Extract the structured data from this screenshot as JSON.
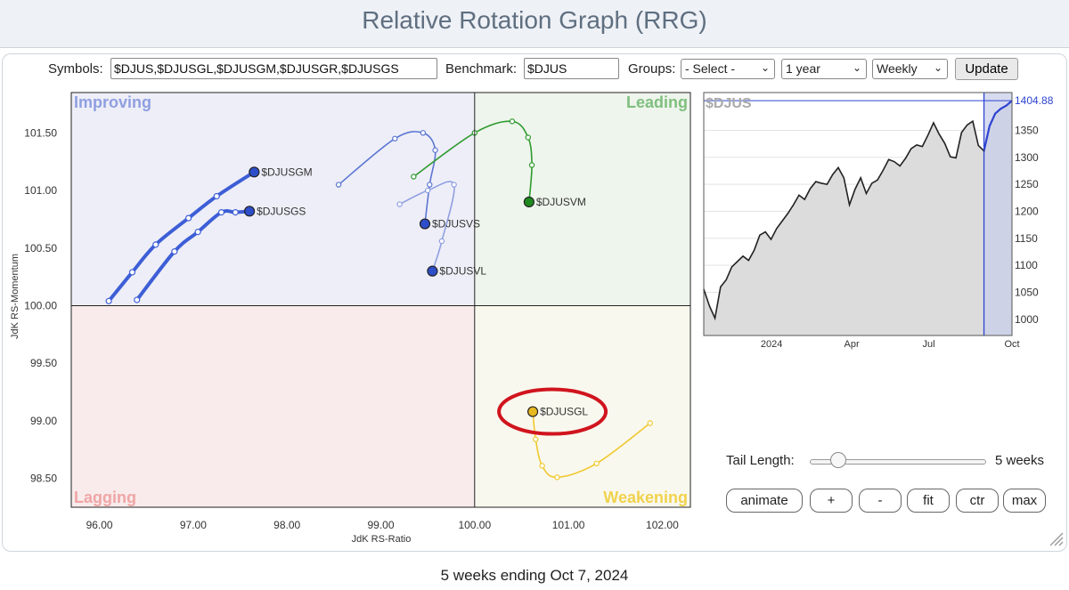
{
  "page": {
    "title": "Relative Rotation Graph (RRG)",
    "footer": "5 weeks ending Oct 7, 2024"
  },
  "controls": {
    "symbols_label": "Symbols:",
    "symbols_value": "$DJUS,$DJUSGL,$DJUSGM,$DJUSGR,$DJUSGS",
    "benchmark_label": "Benchmark:",
    "benchmark_value": "$DJUS",
    "groups_label": "Groups:",
    "groups_selected": "- Select -",
    "period_selected": "1 year",
    "frequency_selected": "Weekly",
    "update_label": "Update"
  },
  "tail": {
    "label": "Tail Length:",
    "value_text": "5 weeks",
    "weeks": 5
  },
  "buttons": {
    "animate": "animate",
    "plus": "+",
    "minus": "-",
    "fit": "fit",
    "ctr": "ctr",
    "max": "max"
  },
  "chart_data": [
    {
      "type": "scatter",
      "title": "",
      "xlabel": "JdK RS-Ratio",
      "ylabel": "JdK RS-Momentum",
      "xlim": [
        95.7,
        102.3
      ],
      "ylim": [
        98.25,
        101.85
      ],
      "x_ticks": [
        "96.00",
        "97.00",
        "98.00",
        "99.00",
        "100.00",
        "101.00",
        "102.00"
      ],
      "y_ticks": [
        "98.50",
        "99.00",
        "99.50",
        "100.00",
        "100.50",
        "101.00",
        "101.50"
      ],
      "center": [
        100,
        100
      ],
      "quadrants": [
        {
          "name": "Improving",
          "position": "top-left",
          "bg": "#eeeef8",
          "label_color": "#8f9fe0"
        },
        {
          "name": "Leading",
          "position": "top-right",
          "bg": "#eef5ec",
          "label_color": "#7fbf7f"
        },
        {
          "name": "Lagging",
          "position": "bottom-left",
          "bg": "#f9ebeb",
          "label_color": "#efa5a5"
        },
        {
          "name": "Weakening",
          "position": "bottom-right",
          "bg": "#f9f8ee",
          "label_color": "#f0d24d"
        }
      ],
      "series": [
        {
          "name": "$DJUSGM",
          "color": "#3d5ed6",
          "head_color": "#2e4ec9",
          "thick": true,
          "points": [
            [
              96.1,
              100.04
            ],
            [
              96.35,
              100.29
            ],
            [
              96.6,
              100.53
            ],
            [
              96.95,
              100.76
            ],
            [
              97.25,
              100.95
            ],
            [
              97.65,
              101.16
            ]
          ]
        },
        {
          "name": "$DJUSGS",
          "color": "#3d5ed6",
          "head_color": "#2e4ec9",
          "thick": true,
          "points": [
            [
              96.4,
              100.05
            ],
            [
              96.8,
              100.47
            ],
            [
              97.05,
              100.64
            ],
            [
              97.3,
              100.81
            ],
            [
              97.45,
              100.81
            ],
            [
              97.6,
              100.82
            ]
          ]
        },
        {
          "name": "$DJUSVS",
          "color": "#5b76d2",
          "head_color": "#2e4ec9",
          "thick": false,
          "points": [
            [
              98.55,
              101.05
            ],
            [
              99.15,
              101.45
            ],
            [
              99.45,
              101.5
            ],
            [
              99.58,
              101.35
            ],
            [
              99.52,
              101.05
            ],
            [
              99.47,
              100.71
            ]
          ]
        },
        {
          "name": "$DJUSVL",
          "color": "#8fa0e0",
          "head_color": "#2e4ec9",
          "thick": false,
          "points": [
            [
              99.2,
              100.88
            ],
            [
              99.5,
              101.0
            ],
            [
              99.78,
              101.05
            ],
            [
              99.65,
              100.56
            ],
            [
              99.55,
              100.3
            ]
          ]
        },
        {
          "name": "$DJUSVM",
          "color": "#2f9a2f",
          "head_color": "#1f8a1f",
          "thick": false,
          "points": [
            [
              99.35,
              101.12
            ],
            [
              100.0,
              101.5
            ],
            [
              100.4,
              101.6
            ],
            [
              100.57,
              101.46
            ],
            [
              100.61,
              101.22
            ],
            [
              100.58,
              100.9
            ]
          ]
        },
        {
          "name": "$DJUSGL",
          "color": "#f0c82e",
          "head_color": "#e8b820",
          "thick": false,
          "points": [
            [
              101.87,
              98.98
            ],
            [
              101.3,
              98.63
            ],
            [
              100.88,
              98.51
            ],
            [
              100.72,
              98.61
            ],
            [
              100.65,
              98.84
            ],
            [
              100.62,
              99.08
            ]
          ]
        }
      ],
      "annotation": {
        "type": "ellipse",
        "target": "$DJUSGL",
        "color": "#d0141e"
      }
    },
    {
      "type": "area",
      "title": "$DJUS",
      "last_value_label": "1404.88",
      "ylim": [
        970,
        1420
      ],
      "y_ticks": [
        "1000",
        "1050",
        "1100",
        "1150",
        "1200",
        "1250",
        "1300",
        "1350"
      ],
      "x_ticks": [
        "2024",
        "Apr",
        "Jul",
        "Oct"
      ],
      "highlight_weeks": 5,
      "values": [
        1056,
        1025,
        1002,
        1060,
        1073,
        1097,
        1107,
        1117,
        1109,
        1128,
        1156,
        1162,
        1148,
        1168,
        1182,
        1196,
        1212,
        1230,
        1222,
        1242,
        1255,
        1252,
        1250,
        1268,
        1281,
        1262,
        1212,
        1241,
        1262,
        1233,
        1252,
        1258,
        1276,
        1296,
        1292,
        1284,
        1298,
        1316,
        1323,
        1320,
        1341,
        1364,
        1343,
        1326,
        1301,
        1299,
        1346,
        1360,
        1367,
        1322,
        1312,
        1358,
        1381,
        1390,
        1396,
        1404.88
      ]
    }
  ]
}
